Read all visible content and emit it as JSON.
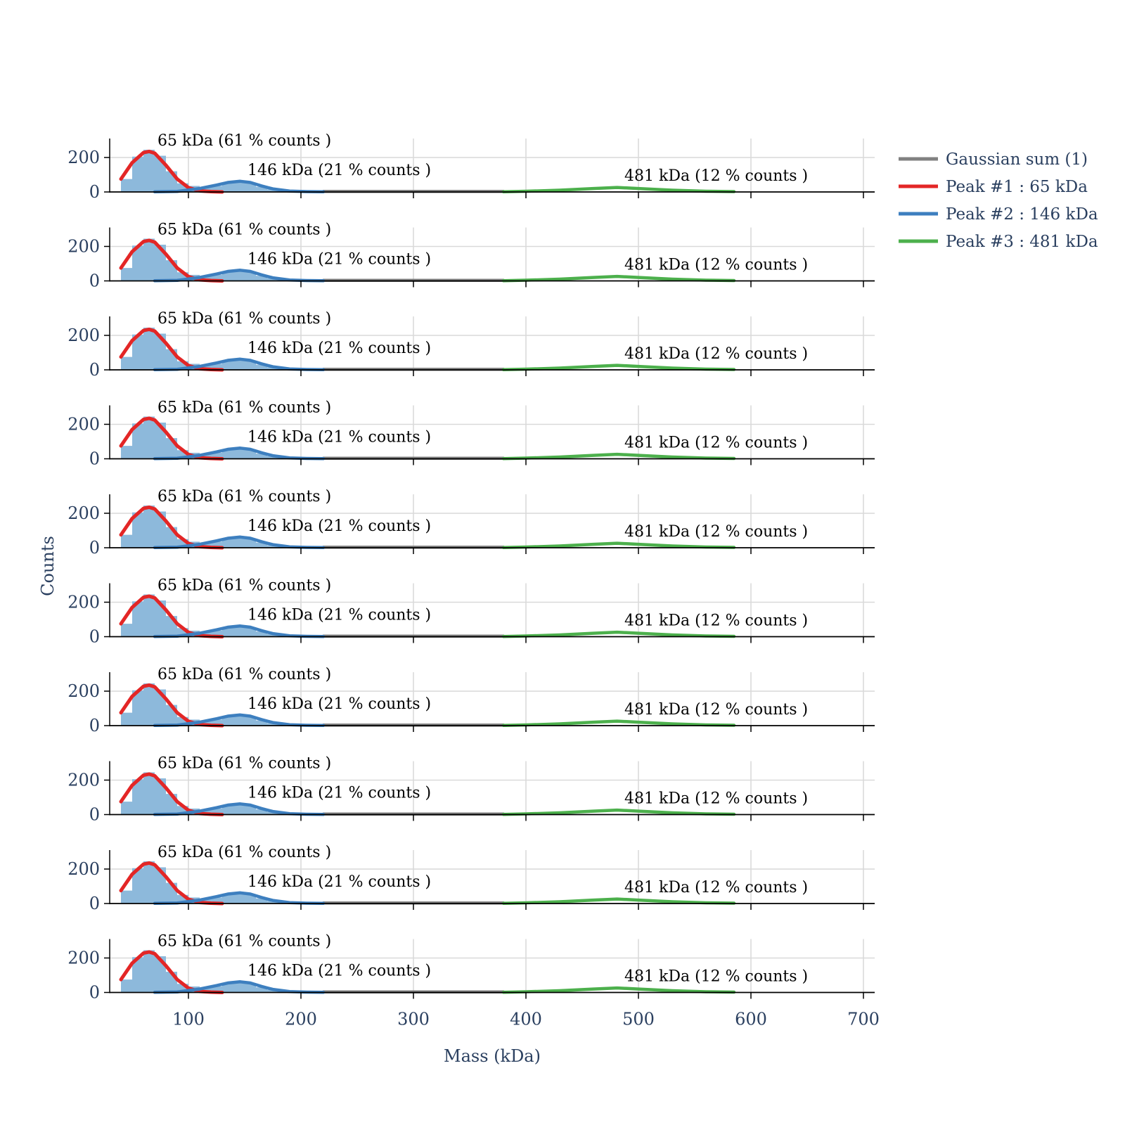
{
  "chart_data": {
    "type": "bar",
    "subplot_count": 10,
    "x_axis": {
      "title": "Mass (kDa)",
      "range": [
        30,
        710
      ],
      "tick_values": [
        100,
        200,
        300,
        400,
        500,
        600,
        700
      ],
      "tick_labels": [
        "100",
        "200",
        "300",
        "400",
        "500",
        "600",
        "700"
      ]
    },
    "y_axis": {
      "title": "Counts",
      "range": [
        0,
        310
      ],
      "tick_values": [
        0,
        200
      ],
      "tick_labels": [
        "0",
        "200"
      ]
    },
    "grid": true,
    "histogram": {
      "color": "#8db9db",
      "bin_edges": [
        40,
        50,
        60,
        70,
        80,
        90,
        100,
        110,
        120,
        130,
        140,
        150,
        160,
        170,
        180,
        190,
        200,
        210,
        220
      ],
      "counts": [
        75,
        205,
        245,
        210,
        120,
        50,
        35,
        25,
        35,
        55,
        65,
        55,
        30,
        15,
        8,
        5,
        3,
        2
      ]
    },
    "series": [
      {
        "name": "Gaussian sum (1)",
        "color": "#808080",
        "x": [
          220,
          260,
          300,
          340,
          380
        ],
        "y": [
          3,
          3,
          3,
          3,
          3
        ]
      },
      {
        "name": "Peak #1 : 65 kDa",
        "color": "#e32626",
        "x": [
          40,
          50,
          60,
          65,
          70,
          80,
          90,
          100,
          110,
          120,
          130
        ],
        "y": [
          75,
          170,
          228,
          235,
          225,
          155,
          75,
          25,
          6,
          2,
          0
        ]
      },
      {
        "name": "Peak #2 : 146 kDa",
        "color": "#3d7fbf",
        "x": [
          70,
          90,
          110,
          125,
          135,
          146,
          155,
          165,
          175,
          190,
          205,
          220
        ],
        "y": [
          1,
          3,
          20,
          40,
          55,
          62,
          55,
          35,
          18,
          5,
          2,
          1
        ]
      },
      {
        "name": "Peak #3 : 481 kDa",
        "color": "#4cb04c",
        "x": [
          380,
          400,
          430,
          460,
          481,
          500,
          530,
          560,
          585
        ],
        "y": [
          1,
          4,
          10,
          20,
          26,
          20,
          10,
          4,
          2
        ]
      }
    ],
    "annotations": [
      {
        "text": "65 kDa (61 % counts )",
        "x": 65,
        "y": 240
      },
      {
        "text": "146 kDa (21 % counts )",
        "x": 146,
        "y": 65
      },
      {
        "text": "481 kDa (12 % counts )",
        "x": 481,
        "y": 28
      }
    ],
    "legend": {
      "placement": "top-right",
      "entries": [
        "Gaussian sum (1)",
        "Peak #1 : 65 kDa",
        "Peak #2 : 146 kDa",
        "Peak #3 : 481 kDa"
      ]
    }
  }
}
